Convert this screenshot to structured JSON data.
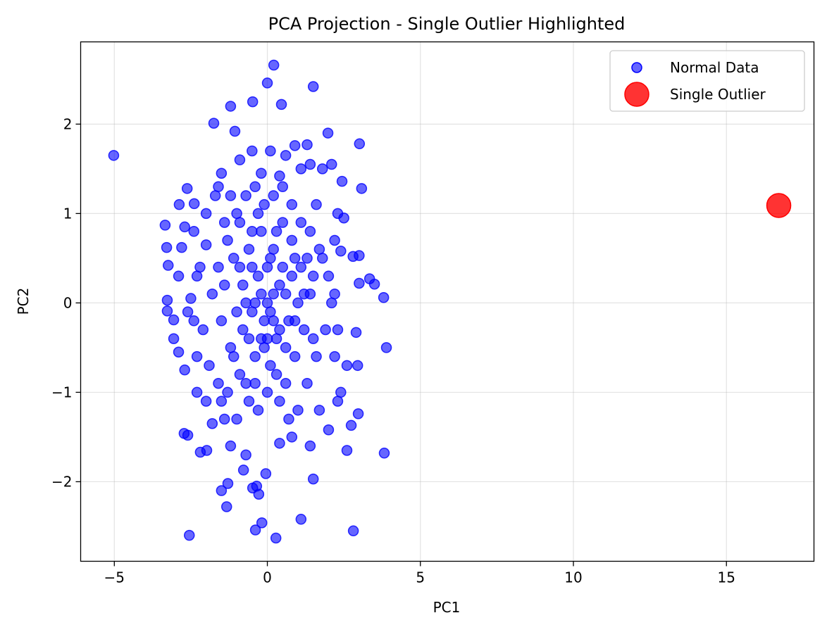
{
  "chart_data": {
    "type": "scatter",
    "title": "PCA Projection - Single Outlier Highlighted",
    "xlabel": "PC1",
    "ylabel": "PC2",
    "xlim": [
      -6.1,
      17.86
    ],
    "ylim": [
      -2.89,
      2.92
    ],
    "xticks": [
      -5,
      0,
      5,
      10,
      15
    ],
    "xtick_labels": [
      "−5",
      "0",
      "5",
      "10",
      "15"
    ],
    "yticks": [
      -2,
      -1,
      0,
      1,
      2
    ],
    "ytick_labels": [
      "−2",
      "−1",
      "0",
      "1",
      "2"
    ],
    "grid": true,
    "legend": {
      "position": "top-right",
      "entries": [
        "Normal Data",
        "Single Outlier"
      ]
    },
    "series": [
      {
        "name": "Normal Data",
        "color": "#0000ff",
        "alpha": 0.6,
        "points": [
          [
            -5.02,
            1.65
          ],
          [
            0.21,
            2.66
          ],
          [
            0.0,
            2.46
          ],
          [
            1.5,
            2.42
          ],
          [
            -1.2,
            2.2
          ],
          [
            -0.48,
            2.25
          ],
          [
            0.46,
            2.22
          ],
          [
            -1.75,
            2.01
          ],
          [
            -1.06,
            1.92
          ],
          [
            1.98,
            1.9
          ],
          [
            3.01,
            1.78
          ],
          [
            3.08,
            1.28
          ],
          [
            2.44,
            1.36
          ],
          [
            -3.34,
            0.87
          ],
          [
            -3.29,
            0.62
          ],
          [
            -3.24,
            0.42
          ],
          [
            -3.27,
            0.03
          ],
          [
            -3.27,
            -0.09
          ],
          [
            -3.06,
            -0.4
          ],
          [
            3.89,
            -0.5
          ],
          [
            3.8,
            0.06
          ],
          [
            3.34,
            0.27
          ],
          [
            3.5,
            0.21
          ],
          [
            3.82,
            -1.68
          ],
          [
            2.81,
            -2.55
          ],
          [
            -2.55,
            -2.6
          ],
          [
            0.28,
            -2.63
          ],
          [
            -0.39,
            -2.54
          ],
          [
            -0.18,
            -2.46
          ],
          [
            1.1,
            -2.42
          ],
          [
            -1.33,
            -2.28
          ],
          [
            -1.29,
            -2.02
          ],
          [
            -1.5,
            -2.1
          ],
          [
            -0.35,
            -2.05
          ],
          [
            -0.28,
            -2.14
          ],
          [
            -0.48,
            -2.07
          ],
          [
            -0.05,
            -1.91
          ],
          [
            -0.78,
            -1.87
          ],
          [
            1.5,
            -1.97
          ],
          [
            -2.72,
            -1.46
          ],
          [
            -2.6,
            -1.48
          ],
          [
            -1.98,
            -1.65
          ],
          [
            -2.19,
            -1.67
          ],
          [
            2.97,
            -1.24
          ],
          [
            2.74,
            -1.37
          ],
          [
            2.6,
            -1.65
          ],
          [
            -2.88,
            1.1
          ],
          [
            -2.62,
            1.28
          ],
          [
            -2.39,
            1.11
          ],
          [
            -3.06,
            -0.19
          ],
          [
            -0.5,
            1.7
          ],
          [
            0.1,
            1.7
          ],
          [
            0.6,
            1.65
          ],
          [
            0.9,
            1.76
          ],
          [
            1.3,
            1.77
          ],
          [
            1.4,
            1.55
          ],
          [
            2.1,
            1.55
          ],
          [
            -0.9,
            1.6
          ],
          [
            -1.5,
            1.45
          ],
          [
            -0.2,
            1.45
          ],
          [
            0.4,
            1.42
          ],
          [
            1.1,
            1.5
          ],
          [
            1.8,
            1.5
          ],
          [
            2.3,
            1.0
          ],
          [
            2.5,
            0.95
          ],
          [
            -2.7,
            0.85
          ],
          [
            -2.4,
            0.8
          ],
          [
            -2.0,
            0.65
          ],
          [
            -2.8,
            0.62
          ],
          [
            -2.9,
            0.3
          ],
          [
            -2.5,
            0.05
          ],
          [
            -2.6,
            -0.1
          ],
          [
            -2.9,
            -0.55
          ],
          [
            -2.7,
            -0.75
          ],
          [
            -2.3,
            -1.0
          ],
          [
            -2.0,
            -1.1
          ],
          [
            -1.8,
            -1.35
          ],
          [
            -1.4,
            -1.3
          ],
          [
            -1.2,
            -1.6
          ],
          [
            -0.7,
            -1.7
          ],
          [
            0.4,
            -1.57
          ],
          [
            0.8,
            -1.5
          ],
          [
            1.4,
            -1.6
          ],
          [
            2.0,
            -1.42
          ],
          [
            2.3,
            -1.1
          ],
          [
            2.4,
            -1.0
          ],
          [
            2.6,
            -0.7
          ],
          [
            2.95,
            -0.7
          ],
          [
            2.9,
            -0.33
          ],
          [
            3.0,
            0.22
          ],
          [
            2.8,
            0.52
          ],
          [
            3.0,
            0.53
          ],
          [
            2.4,
            0.58
          ],
          [
            2.2,
            0.7
          ],
          [
            1.8,
            0.5
          ],
          [
            1.5,
            0.3
          ],
          [
            1.2,
            0.1
          ],
          [
            0.9,
            -0.2
          ],
          [
            0.6,
            -0.5
          ],
          [
            0.3,
            -0.8
          ],
          [
            0.0,
            -1.0
          ],
          [
            -0.3,
            -1.2
          ],
          [
            -0.6,
            -1.1
          ],
          [
            -0.9,
            -0.8
          ],
          [
            -1.2,
            -0.5
          ],
          [
            -1.5,
            -0.2
          ],
          [
            -1.8,
            0.1
          ],
          [
            -1.6,
            0.4
          ],
          [
            -1.3,
            0.7
          ],
          [
            -1.0,
            1.0
          ],
          [
            -0.7,
            1.2
          ],
          [
            -0.4,
            1.3
          ],
          [
            -0.1,
            1.1
          ],
          [
            0.2,
            1.2
          ],
          [
            0.5,
            1.3
          ],
          [
            0.8,
            1.1
          ],
          [
            1.1,
            0.9
          ],
          [
            1.4,
            0.8
          ],
          [
            1.7,
            0.6
          ],
          [
            2.0,
            0.3
          ],
          [
            2.1,
            0.0
          ],
          [
            1.9,
            -0.3
          ],
          [
            1.6,
            -0.6
          ],
          [
            1.3,
            -0.9
          ],
          [
            1.0,
            -1.2
          ],
          [
            0.7,
            -1.3
          ],
          [
            0.4,
            -1.1
          ],
          [
            0.1,
            -0.7
          ],
          [
            -0.2,
            -0.4
          ],
          [
            -0.5,
            -0.1
          ],
          [
            -0.8,
            0.2
          ],
          [
            -1.1,
            0.5
          ],
          [
            -1.4,
            0.9
          ],
          [
            -1.7,
            1.2
          ],
          [
            -2.0,
            1.0
          ],
          [
            -2.2,
            0.4
          ],
          [
            -2.1,
            -0.3
          ],
          [
            -1.9,
            -0.7
          ],
          [
            -1.6,
            -0.9
          ],
          [
            -1.3,
            -1.0
          ],
          [
            -1.0,
            -1.3
          ],
          [
            -0.7,
            -0.9
          ],
          [
            -0.4,
            -0.6
          ],
          [
            -0.1,
            -0.2
          ],
          [
            0.2,
            0.1
          ],
          [
            0.5,
            0.4
          ],
          [
            0.8,
            0.7
          ],
          [
            1.1,
            0.4
          ],
          [
            1.4,
            0.1
          ],
          [
            1.2,
            -0.3
          ],
          [
            0.9,
            -0.6
          ],
          [
            0.6,
            -0.9
          ],
          [
            0.3,
            -0.4
          ],
          [
            0.0,
            0.0
          ],
          [
            -0.3,
            0.3
          ],
          [
            -0.6,
            0.6
          ],
          [
            -0.9,
            0.9
          ],
          [
            -1.2,
            1.2
          ],
          [
            -0.5,
            0.8
          ],
          [
            0.2,
            0.6
          ],
          [
            0.5,
            0.9
          ],
          [
            0.8,
            0.3
          ],
          [
            1.0,
            0.0
          ],
          [
            0.7,
            -0.2
          ],
          [
            0.4,
            0.2
          ],
          [
            0.1,
            0.5
          ],
          [
            -0.2,
            0.8
          ],
          [
            -0.5,
            0.4
          ],
          [
            -0.8,
            -0.3
          ],
          [
            -1.1,
            -0.6
          ],
          [
            -0.4,
            -0.9
          ],
          [
            -0.1,
            -0.5
          ],
          [
            0.2,
            -0.2
          ],
          [
            0.3,
            0.8
          ],
          [
            -0.3,
            1.0
          ],
          [
            -0.6,
            -0.4
          ],
          [
            1.5,
            -0.4
          ],
          [
            1.3,
            0.5
          ],
          [
            -1.4,
            0.2
          ],
          [
            -1.0,
            -0.1
          ],
          [
            -0.2,
            0.1
          ],
          [
            0.1,
            -0.1
          ],
          [
            0.4,
            -0.3
          ],
          [
            -0.4,
            0.0
          ],
          [
            0.6,
            0.1
          ],
          [
            -0.7,
            0.0
          ],
          [
            0.9,
            0.5
          ],
          [
            -0.9,
            0.4
          ],
          [
            0.0,
            0.4
          ],
          [
            0.0,
            -0.4
          ],
          [
            2.2,
            -0.6
          ],
          [
            2.3,
            -0.3
          ],
          [
            2.2,
            0.1
          ],
          [
            -2.3,
            -0.6
          ],
          [
            -2.4,
            -0.2
          ],
          [
            -2.3,
            0.3
          ],
          [
            1.7,
            -1.2
          ],
          [
            -1.6,
            1.3
          ],
          [
            1.6,
            1.1
          ],
          [
            -1.5,
            -1.1
          ]
        ]
      },
      {
        "name": "Single Outlier",
        "color": "#ff0000",
        "alpha": 0.8,
        "points": [
          [
            16.71,
            1.09
          ]
        ]
      }
    ]
  }
}
